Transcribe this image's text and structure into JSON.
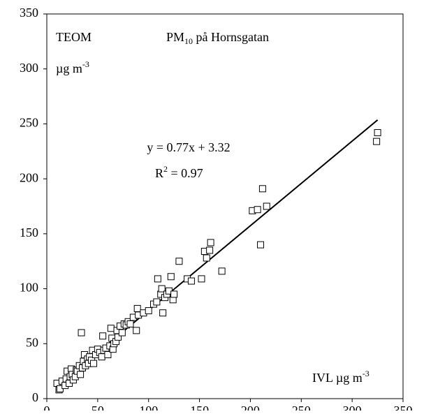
{
  "chart_data": {
    "type": "scatter",
    "title": {
      "base": "PM",
      "sub": "10",
      "rest": " på Hornsgatan"
    },
    "y_label": "TEOM",
    "y_unit": {
      "base": "µg m",
      "sup": "-3"
    },
    "x_label": {
      "base": "IVL µg m",
      "sup": "-3"
    },
    "equation": "y = 0.77x + 3.32",
    "r2": {
      "base": "R",
      "sup": "2",
      "rest": " = 0.97"
    },
    "trendline": {
      "slope": 0.77,
      "intercept": 3.32,
      "x_range": [
        10,
        325
      ]
    },
    "color": "#000000",
    "xlim": [
      0,
      350
    ],
    "xticks": [
      0,
      50,
      100,
      150,
      200,
      250,
      300,
      350
    ],
    "ylim": [
      0,
      350
    ],
    "yticks": [
      0,
      50,
      100,
      150,
      200,
      250,
      300,
      350
    ],
    "grid": false,
    "x": [
      10,
      12,
      13,
      15,
      18,
      19,
      20,
      22,
      23,
      24,
      25,
      26,
      28,
      29,
      30,
      32,
      33,
      34,
      35,
      36,
      37,
      38,
      40,
      41,
      42,
      44,
      45,
      46,
      48,
      50,
      52,
      54,
      55,
      56,
      58,
      60,
      62,
      63,
      64,
      65,
      66,
      68,
      69,
      70,
      72,
      74,
      76,
      78,
      80,
      82,
      85,
      88,
      89,
      90,
      95,
      100,
      105,
      108,
      109,
      112,
      113,
      114,
      116,
      118,
      120,
      122,
      124,
      125,
      130,
      138,
      142,
      152,
      155,
      157,
      160,
      161,
      172,
      202,
      207,
      210,
      212,
      216,
      324,
      325
    ],
    "y": [
      14,
      8,
      9,
      16,
      12,
      18,
      25,
      14,
      20,
      27,
      22,
      17,
      20,
      26,
      25,
      30,
      22,
      60,
      28,
      34,
      40,
      30,
      36,
      32,
      38,
      35,
      44,
      32,
      40,
      45,
      42,
      38,
      57,
      44,
      46,
      40,
      48,
      64,
      55,
      45,
      50,
      52,
      62,
      56,
      66,
      60,
      68,
      67,
      70,
      68,
      74,
      62,
      82,
      76,
      78,
      80,
      86,
      88,
      109,
      95,
      100,
      78,
      92,
      95,
      98,
      111,
      90,
      95,
      125,
      109,
      107,
      109,
      134,
      128,
      135,
      142,
      116,
      171,
      172,
      140,
      191,
      175,
      234,
      242
    ]
  }
}
